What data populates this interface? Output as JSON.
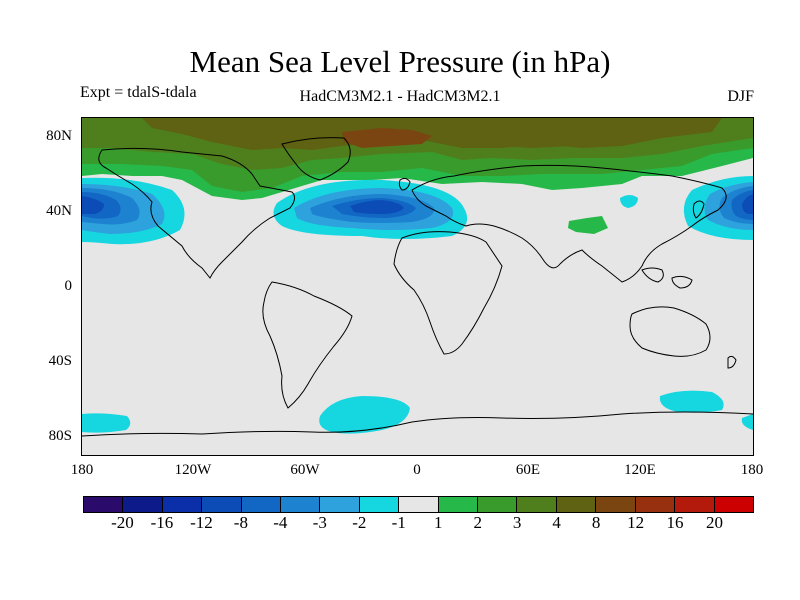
{
  "title": "Mean Sea Level Pressure (in hPa)",
  "subtitle_left": "Expt = tdalS-tdala",
  "subtitle_center": "HadCM3M2.1 - HadCM3M2.1",
  "subtitle_right": "DJF",
  "y_labels": [
    "80N",
    "40N",
    "0",
    "40S",
    "80S"
  ],
  "x_labels": [
    "180",
    "120W",
    "60W",
    "0",
    "60E",
    "120E",
    "180"
  ],
  "colorbar": {
    "colors": [
      "#2a0a6b",
      "#0c1a8a",
      "#0b2fa8",
      "#0b4cb6",
      "#1267c4",
      "#1d82cf",
      "#2ea2dc",
      "#16d6e0",
      "#e6e6e6",
      "#27b84a",
      "#3a9b2d",
      "#4f7f1d",
      "#5e6212",
      "#7b4512",
      "#96300f",
      "#b41a0c",
      "#cc0000"
    ],
    "labels": [
      "-20",
      "-16",
      "-12",
      "-8",
      "-4",
      "-3",
      "-2",
      "-1",
      "1",
      "2",
      "3",
      "4",
      "8",
      "12",
      "16",
      "20"
    ]
  },
  "map_colors": {
    "background": "#e6e6e6",
    "neg1": "#16d6e0",
    "neg2": "#2ea2dc",
    "neg3": "#1d82cf",
    "neg4": "#1267c4",
    "neg8": "#0b4cb6",
    "pos1": "#27b84a",
    "pos2": "#3a9b2d",
    "pos3": "#4f7f1d",
    "pos4": "#5e6212",
    "pos8": "#7b4512"
  }
}
